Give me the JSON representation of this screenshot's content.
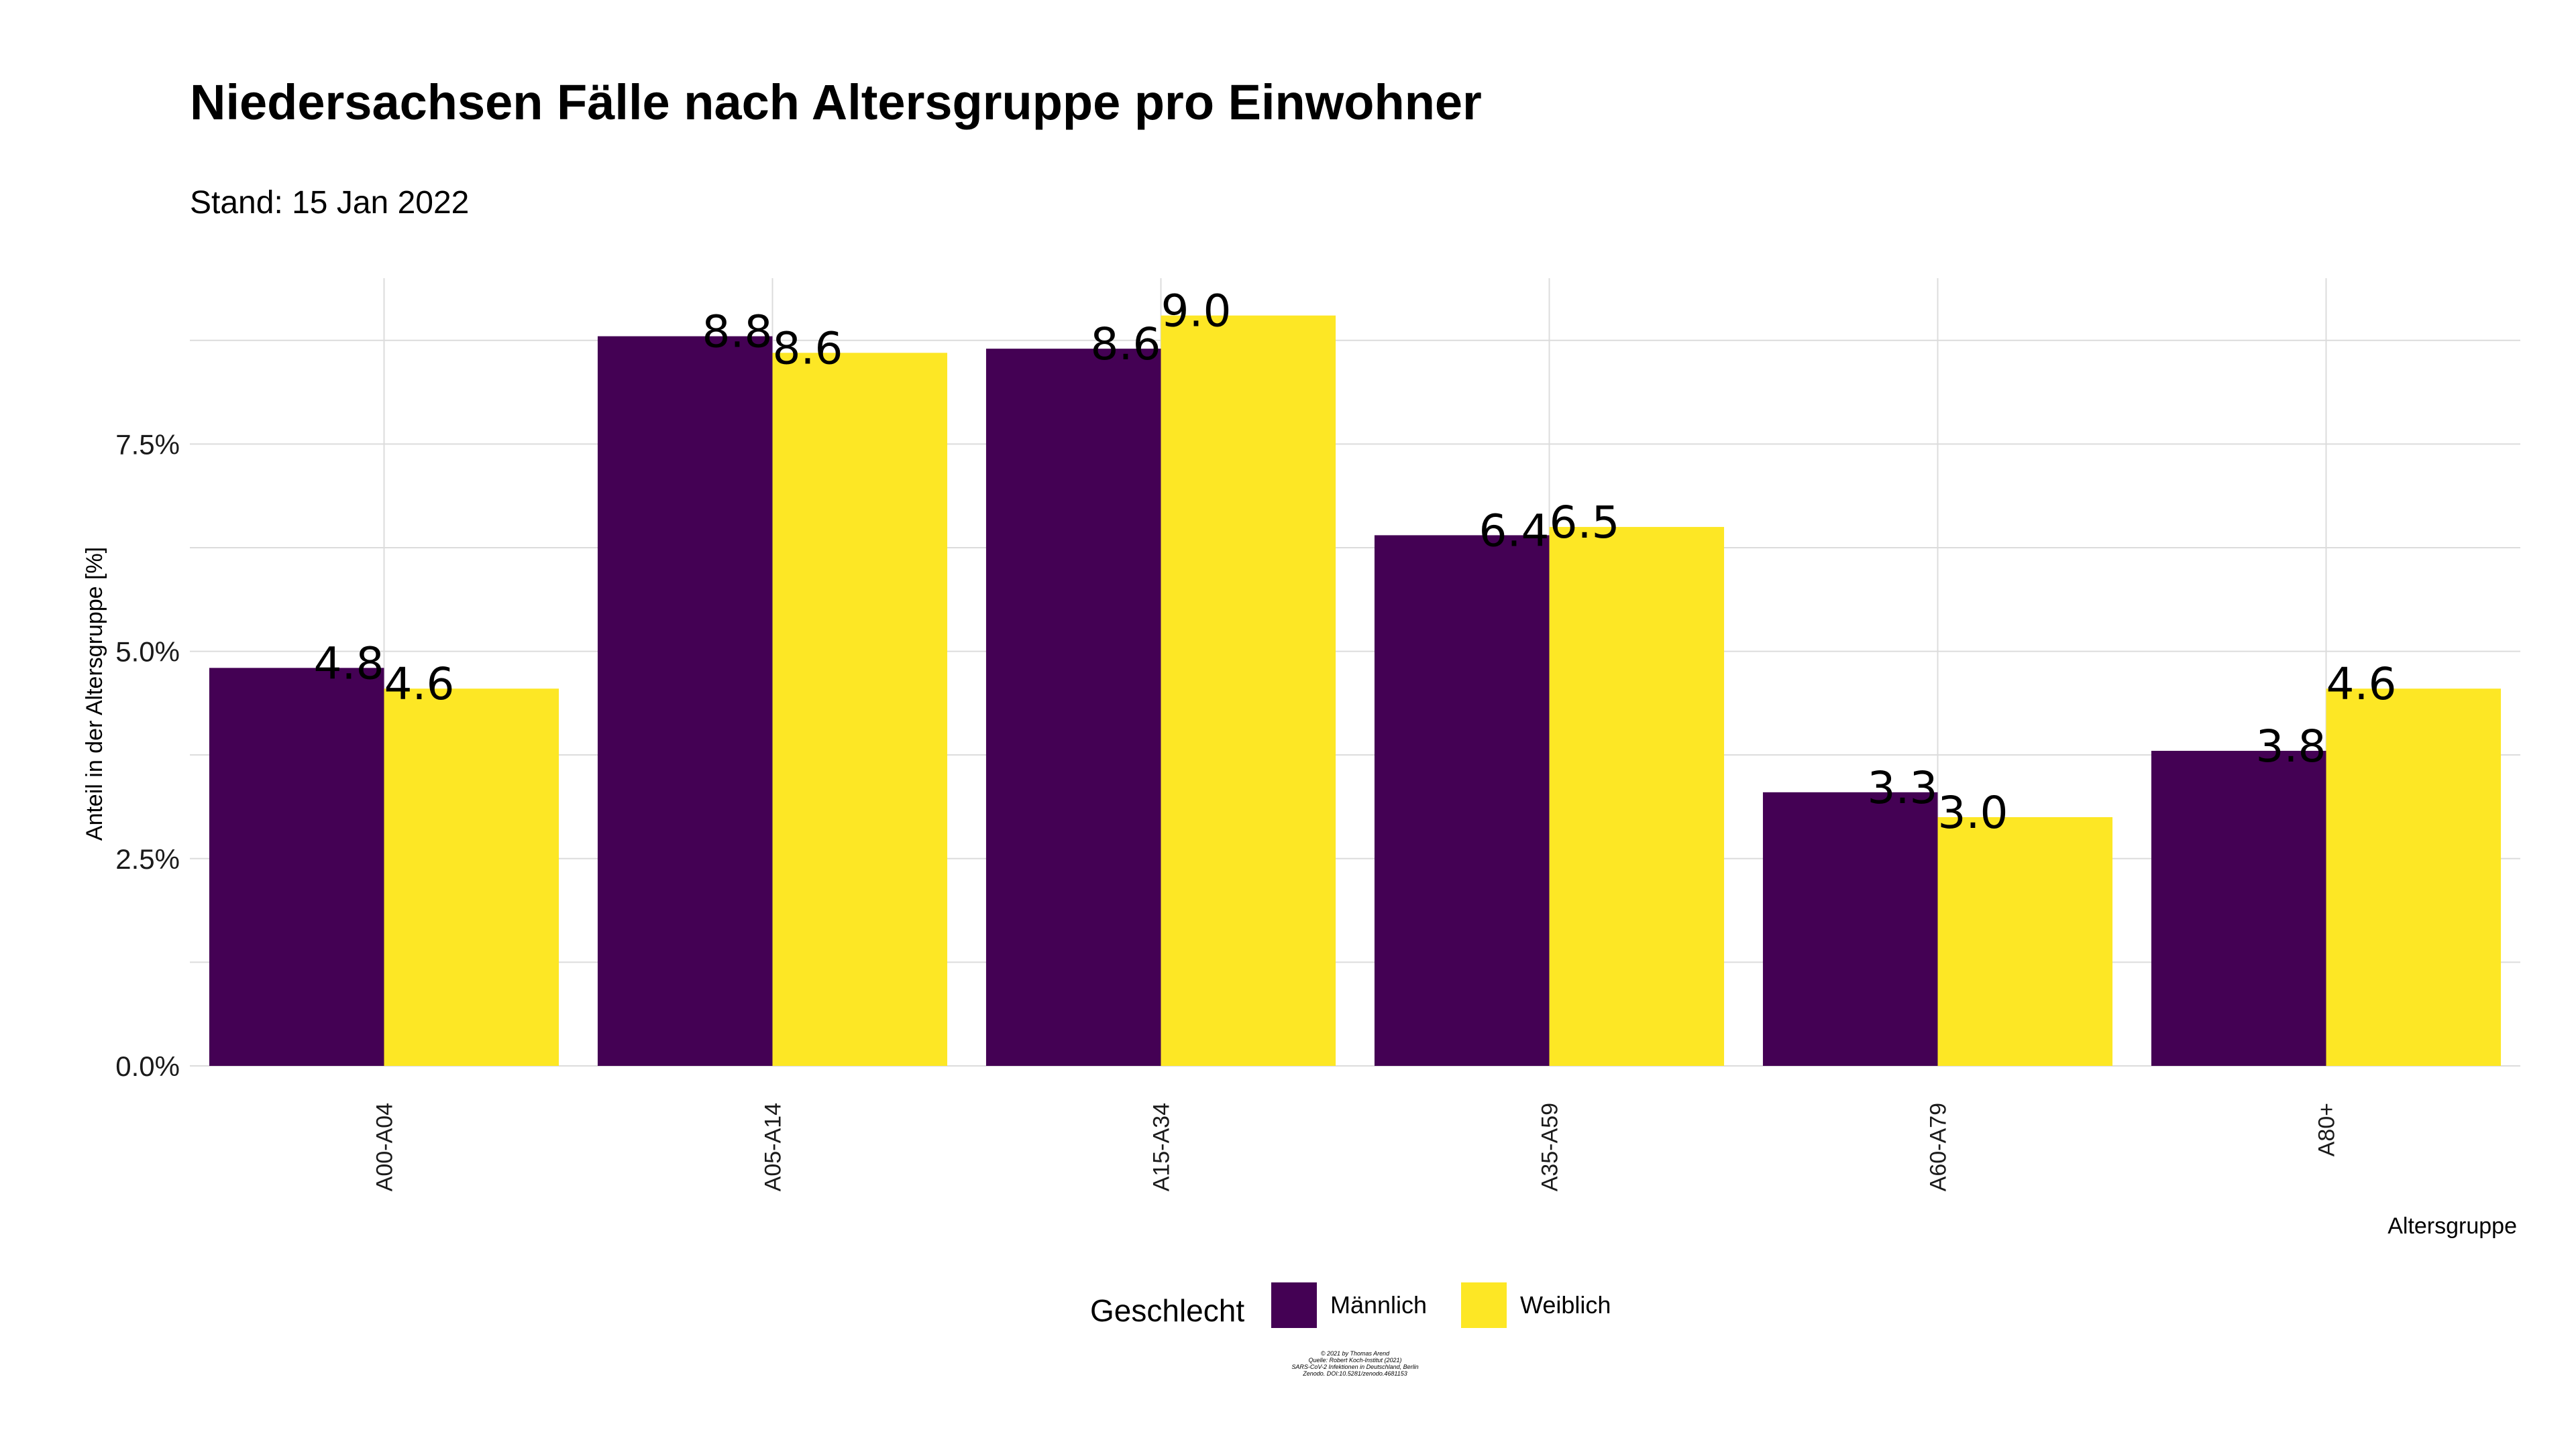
{
  "chart_data": {
    "type": "bar",
    "title": "Niedersachsen Fälle nach Altersgruppe pro Einwohner",
    "subtitle": "Stand: 15 Jan 2022",
    "xlabel": "Altersgruppe",
    "ylabel": "Anteil in der Altersgruppe [%]",
    "categories": [
      "A00-A04",
      "A05-A14",
      "A15-A34",
      "A35-A59",
      "A60-A79",
      "A80+"
    ],
    "series": [
      {
        "name": "Männlich",
        "color": "#440154",
        "values": [
          4.8,
          8.8,
          8.65,
          6.4,
          3.3,
          3.8
        ],
        "labels": [
          "4.8",
          "8.8",
          "8.6",
          "6.4",
          "3.3",
          "3.8"
        ]
      },
      {
        "name": "Weiblich",
        "color": "#FDE725",
        "values": [
          4.55,
          8.6,
          9.05,
          6.5,
          3.0,
          4.55
        ],
        "labels": [
          "4.6",
          "8.6",
          "9.0",
          "6.5",
          "3.0",
          "4.6"
        ]
      }
    ],
    "ylim": [
      0,
      9.5
    ],
    "yticks": [
      0,
      2.5,
      5.0,
      7.5
    ],
    "ytick_labels": [
      "0.0%",
      "2.5%",
      "5.0%",
      "7.5%"
    ],
    "grid": true,
    "legend": {
      "title": "Geschlecht",
      "position": "bottom"
    },
    "caption_lines": [
      "© 2021 by Thomas Arend",
      "Quelle: Robert Koch-Institut (2021)",
      "SARS-CoV-2 Infektionen in Deutschland, Berlin",
      "Zenodo. DOI:10.5281/zenodo.4681153"
    ]
  }
}
